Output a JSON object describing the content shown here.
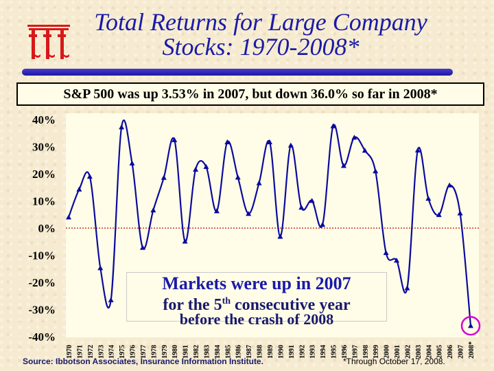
{
  "title_line1": "Total Returns for Large Company",
  "title_line2": "Stocks: 1970-2008*",
  "banner": "S&P 500 was up 3.53% in 2007, but down 36.0% so far in 2008*",
  "annotation": {
    "line1": "Markets were up in 2007",
    "line2_pre": "for the 5",
    "line2_sup": "th",
    "line2_post": " consecutive year",
    "line3": "before the crash of 2008"
  },
  "source": "Source:  Ibbotson Associates, Insurance Information Institute.",
  "footnote": "*Through October 17, 2008.",
  "colors": {
    "title": "#1a1aa8",
    "line": "#0a0a9e",
    "zero_line": "#c0392b",
    "highlight_circle": "#d400d4",
    "logo": "#d81818"
  },
  "chart_data": {
    "type": "line",
    "title": "Total Returns for Large Company Stocks: 1970-2008*",
    "categories": [
      "1970",
      "1971",
      "1972",
      "1973",
      "1974",
      "1975",
      "1976",
      "1977",
      "1978",
      "1979",
      "1980",
      "1981",
      "1982",
      "1983",
      "1984",
      "1985",
      "1986",
      "1987",
      "1988",
      "1989",
      "1990",
      "1991",
      "1992",
      "1993",
      "1994",
      "1995",
      "1996",
      "1997",
      "1998",
      "1999",
      "2000",
      "2001",
      "2002",
      "2003",
      "2004",
      "2005",
      "2006",
      "2007",
      "2008*"
    ],
    "series": [
      {
        "values": [
          4,
          14.3,
          19,
          -14.7,
          -26.5,
          37.2,
          23.9,
          -7.2,
          6.6,
          18.6,
          32.5,
          -4.9,
          21.6,
          22.6,
          6.3,
          31.7,
          18.7,
          5.3,
          16.6,
          31.7,
          -3.1,
          30.5,
          7.6,
          10.1,
          1.3,
          37.6,
          23.0,
          33.4,
          28.6,
          21.0,
          -9.1,
          -11.9,
          -22.1,
          28.7,
          10.9,
          4.9,
          15.8,
          5.5,
          -36.0
        ]
      }
    ],
    "yticks": [
      "40%",
      "30%",
      "20%",
      "10%",
      "0%",
      "-10%",
      "-20%",
      "-30%",
      "-40%"
    ],
    "ylim": [
      -40,
      40
    ],
    "y_unit": "%",
    "grid": false,
    "highlight_point": "2008*"
  }
}
